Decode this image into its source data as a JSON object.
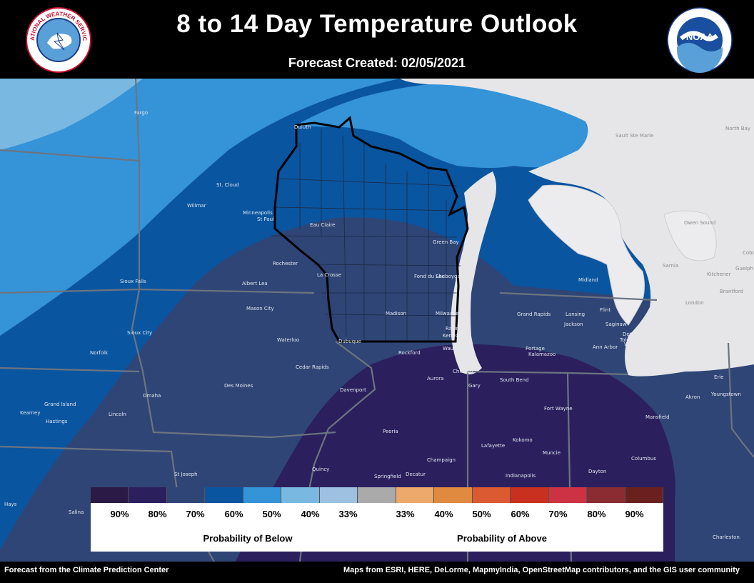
{
  "header": {
    "title": "8 to 14 Day Temperature Outlook",
    "subtitle": "Forecast Created: 02/05/2021",
    "logo_left_text": "NATIONAL WEATHER SERVICE",
    "logo_right_text": "NOAA"
  },
  "legend": {
    "below": [
      {
        "label": "90%",
        "color": "#2a1a45"
      },
      {
        "label": "80%",
        "color": "#2b1f5e"
      },
      {
        "label": "70%",
        "color": "#2f4576"
      },
      {
        "label": "60%",
        "color": "#0a55a0"
      },
      {
        "label": "50%",
        "color": "#3593d8"
      },
      {
        "label": "40%",
        "color": "#79b8e0"
      },
      {
        "label": "33%",
        "color": "#9ec0e1"
      }
    ],
    "normal_color": "#aaaaaa",
    "above": [
      {
        "label": "33%",
        "color": "#eda86b"
      },
      {
        "label": "40%",
        "color": "#e08a40"
      },
      {
        "label": "50%",
        "color": "#dc5a32"
      },
      {
        "label": "60%",
        "color": "#c93020"
      },
      {
        "label": "70%",
        "color": "#cc3244"
      },
      {
        "label": "80%",
        "color": "#8b2c32"
      },
      {
        "label": "90%",
        "color": "#6b2020"
      }
    ],
    "below_caption": "Probability of Below",
    "above_caption": "Probability of Above"
  },
  "cities": [
    "Fargo",
    "St. Cloud",
    "Willmar",
    "Minneapolis",
    "St Paul",
    "Duluth",
    "Eau Claire",
    "Rochester",
    "La Crosse",
    "Albert Lea",
    "Mason City",
    "Waterloo",
    "Dubuque",
    "Cedar Rapids",
    "Des Moines",
    "Davenport",
    "Sioux Falls",
    "Sioux City",
    "Norfolk",
    "Grand Island",
    "Kearney",
    "Hastings",
    "Omaha",
    "Lincoln",
    "St Joseph",
    "Salina",
    "Hays",
    "Green Bay",
    "Fond du Lac",
    "Sheboygan",
    "Madison",
    "Milwaukee",
    "Racine",
    "Kenosha",
    "Waukegan",
    "Rockford",
    "Chicago",
    "Aurora",
    "Gary",
    "South Bend",
    "Peoria",
    "Quincy",
    "Springfield",
    "Decatur",
    "Champaign",
    "Lafayette",
    "Kokomo",
    "Indianapolis",
    "Muncie",
    "Fort Wayne",
    "Dayton",
    "Columbus",
    "Mansfield",
    "Akron",
    "Youngstown",
    "Erie",
    "Toledo",
    "Ann Arbor",
    "Detroit",
    "Jackson",
    "Lansing",
    "Grand Rapids",
    "Portage",
    "Kalamazoo",
    "Flint",
    "Midland",
    "Saginaw",
    "Windsor",
    "Sarnia",
    "London",
    "Brantford",
    "Kitchener",
    "Guelph",
    "Owen Sound",
    "Cobourg",
    "North Bay",
    "Sault Ste Marie",
    "Charleston"
  ],
  "footer": {
    "left": "Forecast from the Climate Prediction Center",
    "right": "Maps from ESRI, HERE, DeLorme, MapmyIndia, OpenStreetMap contributors, and the GIS user community"
  }
}
